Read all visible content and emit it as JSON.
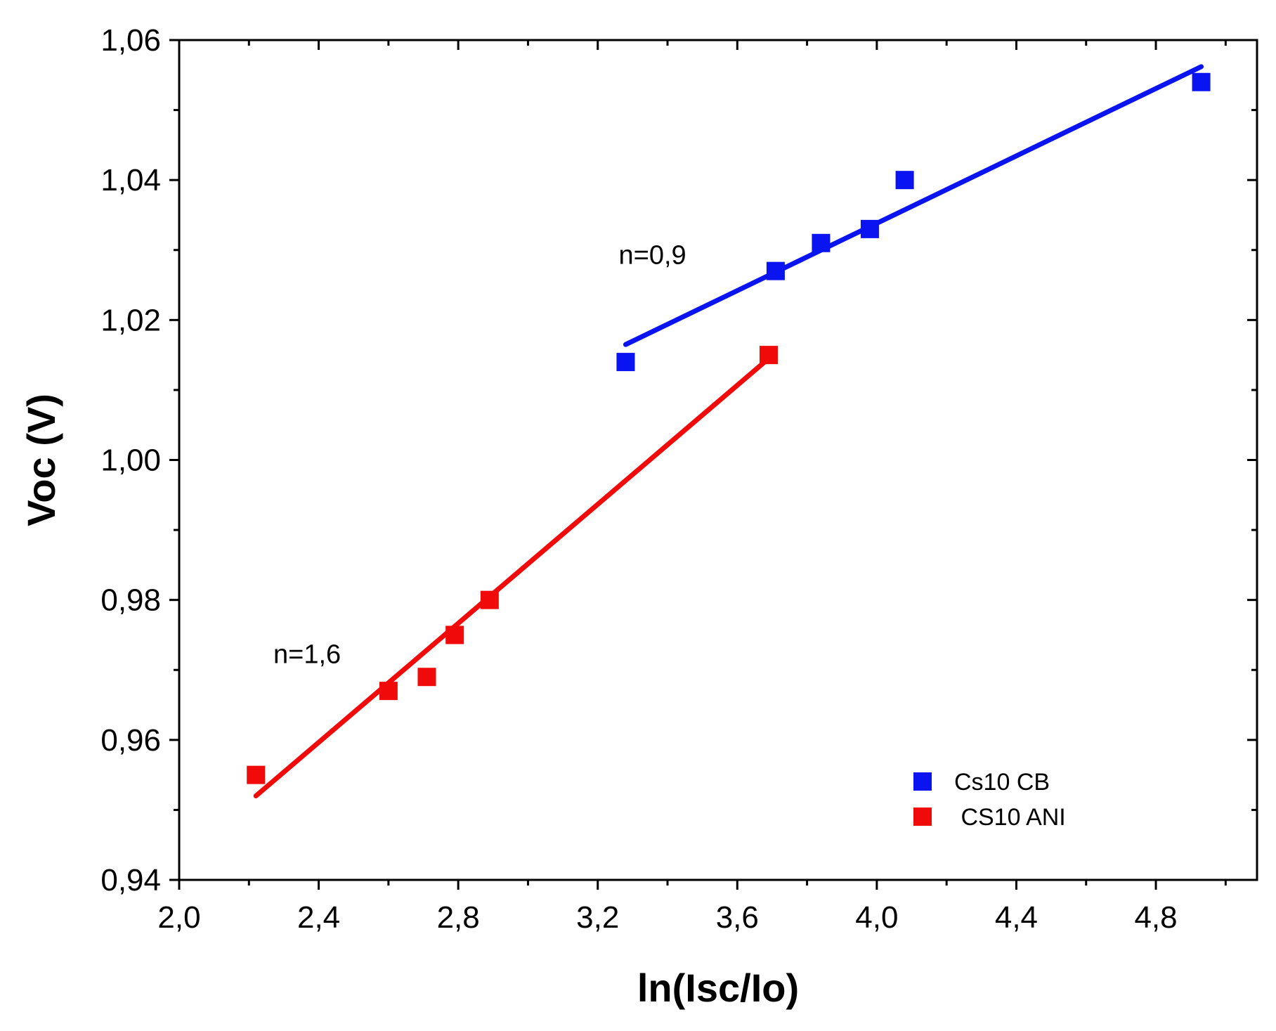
{
  "chart_data": {
    "type": "scatter",
    "xlabel": "ln(Isc/Io)",
    "ylabel": "Voc (V)",
    "xlim": [
      2.0,
      5.09
    ],
    "ylim": [
      0.94,
      1.06
    ],
    "x_ticks": [
      2.0,
      2.4,
      2.8,
      3.2,
      3.6,
      4.0,
      4.4,
      4.8
    ],
    "x_tick_labels": [
      "2,0",
      "2,4",
      "2,8",
      "3,2",
      "3,6",
      "4,0",
      "4,4",
      "4,8"
    ],
    "y_ticks": [
      0.94,
      0.96,
      0.98,
      1.0,
      1.02,
      1.04,
      1.06
    ],
    "y_tick_labels": [
      "0,94",
      "0,96",
      "0,98",
      "1,00",
      "1,02",
      "1,04",
      "1,06"
    ],
    "legend_position": "bottom-right",
    "series": [
      {
        "name": "Cs10 CB",
        "color": "#0a14f0",
        "x": [
          3.28,
          3.71,
          3.84,
          3.98,
          4.08,
          4.93
        ],
        "y": [
          1.014,
          1.027,
          1.031,
          1.033,
          1.04,
          1.054
        ],
        "fit": {
          "x": [
            3.28,
            4.93
          ],
          "y": [
            1.0165,
            1.0562
          ]
        },
        "annotation": {
          "text": "n=0,9",
          "x": 3.26,
          "y": 1.028
        }
      },
      {
        "name": " CS10 ANI",
        "color": "#f00a0a",
        "x": [
          2.22,
          2.6,
          2.71,
          2.79,
          2.89,
          3.69
        ],
        "y": [
          0.955,
          0.967,
          0.969,
          0.975,
          0.98,
          1.015
        ],
        "fit": {
          "x": [
            2.22,
            3.69
          ],
          "y": [
            0.952,
            1.0145
          ]
        },
        "annotation": {
          "text": "n=1,6",
          "x": 2.27,
          "y": 0.971
        }
      }
    ]
  }
}
